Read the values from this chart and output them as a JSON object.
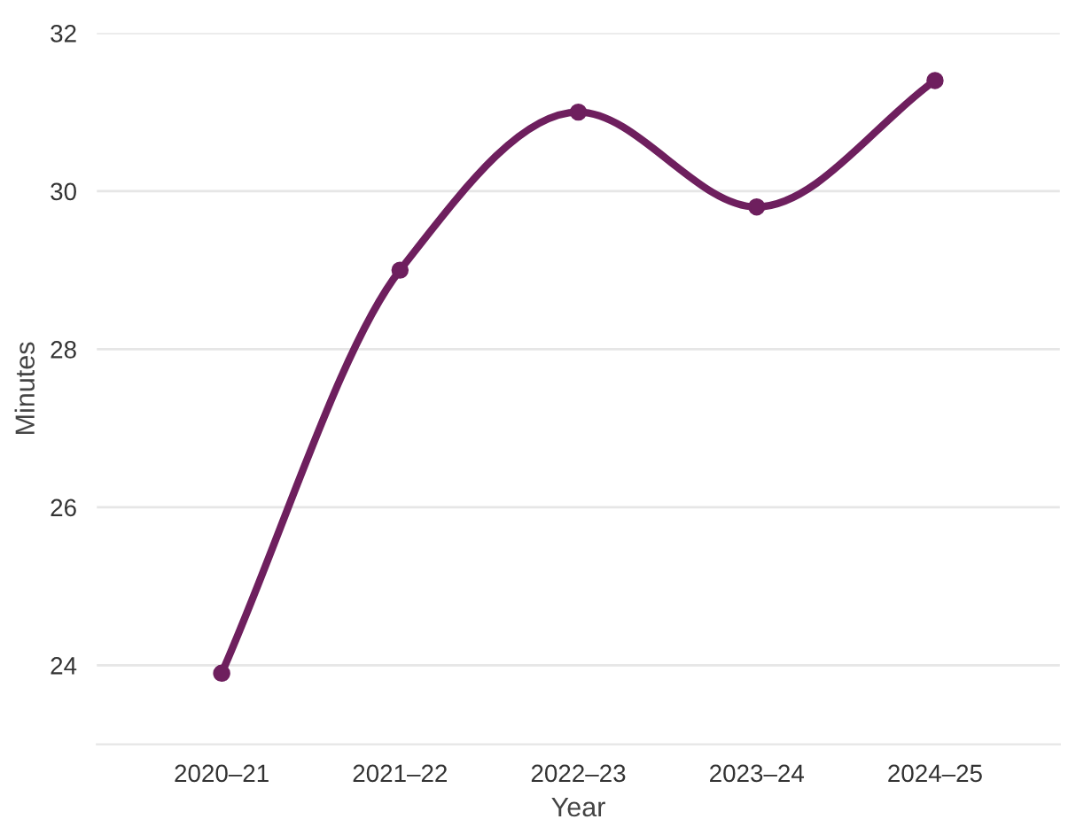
{
  "chart_data": {
    "type": "line",
    "xlabel": "Year",
    "ylabel": "Minutes",
    "categories": [
      "2020–21",
      "2021–22",
      "2022–23",
      "2023–24",
      "2024–25"
    ],
    "series": [
      {
        "color": "#6e1f5e",
        "values": [
          23.9,
          29.0,
          31.0,
          29.8,
          31.4
        ]
      }
    ],
    "ylim": [
      23,
      32
    ],
    "yticks": [
      24,
      26,
      28,
      30,
      32
    ],
    "grid": "y",
    "marker": "circle",
    "line_style": "solid",
    "legend": false
  }
}
